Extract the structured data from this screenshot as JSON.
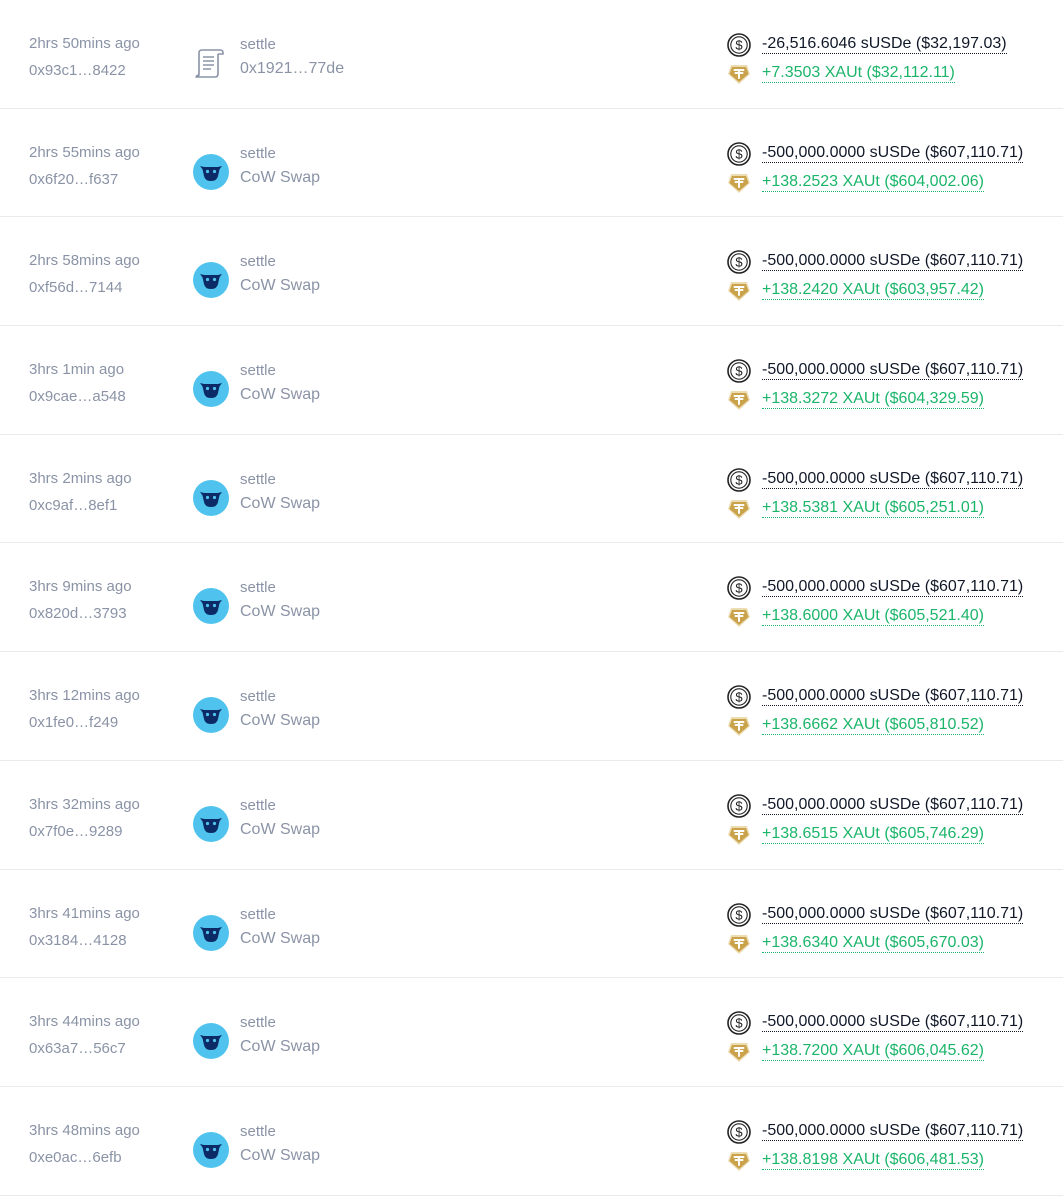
{
  "colors": {
    "positive": "#1bb56a",
    "negative": "#101828",
    "muted": "#8a93a6",
    "cow_blue": "#4fc3ee",
    "cow_dark": "#0b2a66",
    "xaut_gold": "#c9a24a"
  },
  "icons": {
    "out_token": "susde-dollar-circle-icon",
    "in_token": "xaut-tether-gold-icon",
    "contract": "scroll-document-icon",
    "cow": "cow-swap-icon"
  },
  "transactions": [
    {
      "time": "2hrs 50mins ago",
      "hash": "0x93c1…8422",
      "method": "settle",
      "app": "0x1921…77de",
      "app_icon": "contract",
      "out": "-26,516.6046 sUSDe ($32,197.03)",
      "in": "+7.3503 XAUt ($32,112.11)"
    },
    {
      "time": "2hrs 55mins ago",
      "hash": "0x6f20…f637",
      "method": "settle",
      "app": "CoW Swap",
      "app_icon": "cow",
      "out": "-500,000.0000 sUSDe ($607,110.71)",
      "in": "+138.2523 XAUt ($604,002.06)"
    },
    {
      "time": "2hrs 58mins ago",
      "hash": "0xf56d…7144",
      "method": "settle",
      "app": "CoW Swap",
      "app_icon": "cow",
      "out": "-500,000.0000 sUSDe ($607,110.71)",
      "in": "+138.2420 XAUt ($603,957.42)"
    },
    {
      "time": "3hrs 1min ago",
      "hash": "0x9cae…a548",
      "method": "settle",
      "app": "CoW Swap",
      "app_icon": "cow",
      "out": "-500,000.0000 sUSDe ($607,110.71)",
      "in": "+138.3272 XAUt ($604,329.59)"
    },
    {
      "time": "3hrs 2mins ago",
      "hash": "0xc9af…8ef1",
      "method": "settle",
      "app": "CoW Swap",
      "app_icon": "cow",
      "out": "-500,000.0000 sUSDe ($607,110.71)",
      "in": "+138.5381 XAUt ($605,251.01)"
    },
    {
      "time": "3hrs 9mins ago",
      "hash": "0x820d…3793",
      "method": "settle",
      "app": "CoW Swap",
      "app_icon": "cow",
      "out": "-500,000.0000 sUSDe ($607,110.71)",
      "in": "+138.6000 XAUt ($605,521.40)"
    },
    {
      "time": "3hrs 12mins ago",
      "hash": "0x1fe0…f249",
      "method": "settle",
      "app": "CoW Swap",
      "app_icon": "cow",
      "out": "-500,000.0000 sUSDe ($607,110.71)",
      "in": "+138.6662 XAUt ($605,810.52)"
    },
    {
      "time": "3hrs 32mins ago",
      "hash": "0x7f0e…9289",
      "method": "settle",
      "app": "CoW Swap",
      "app_icon": "cow",
      "out": "-500,000.0000 sUSDe ($607,110.71)",
      "in": "+138.6515 XAUt ($605,746.29)"
    },
    {
      "time": "3hrs 41mins ago",
      "hash": "0x3184…4128",
      "method": "settle",
      "app": "CoW Swap",
      "app_icon": "cow",
      "out": "-500,000.0000 sUSDe ($607,110.71)",
      "in": "+138.6340 XAUt ($605,670.03)"
    },
    {
      "time": "3hrs 44mins ago",
      "hash": "0x63a7…56c7",
      "method": "settle",
      "app": "CoW Swap",
      "app_icon": "cow",
      "out": "-500,000.0000 sUSDe ($607,110.71)",
      "in": "+138.7200 XAUt ($606,045.62)"
    },
    {
      "time": "3hrs 48mins ago",
      "hash": "0xe0ac…6efb",
      "method": "settle",
      "app": "CoW Swap",
      "app_icon": "cow",
      "out": "-500,000.0000 sUSDe ($607,110.71)",
      "in": "+138.8198 XAUt ($606,481.53)"
    }
  ]
}
